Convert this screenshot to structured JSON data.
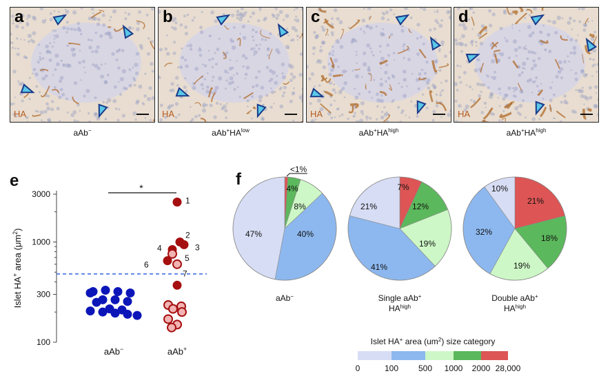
{
  "panels": [
    {
      "label": "a",
      "stain": "HA",
      "caption_main": "aAb",
      "caption_sup1": "−",
      "caption_mid": "",
      "caption_sup2": ""
    },
    {
      "label": "b",
      "stain": "HA",
      "caption_main": "aAb",
      "caption_sup1": "+",
      "caption_mid": "HA",
      "caption_sup2": "low"
    },
    {
      "label": "c",
      "stain": "HA",
      "caption_main": "aAb",
      "caption_sup1": "+",
      "caption_mid": "HA",
      "caption_sup2": "high"
    },
    {
      "label": "d",
      "stain": "HA",
      "caption_main": "aAb",
      "caption_sup1": "+",
      "caption_mid": "HA",
      "caption_sup2": "high"
    }
  ],
  "colors": {
    "stain_brown": "#b06a2a",
    "tissue_bg": "#e8ddd0",
    "arrow_fill": "#5ac8e8",
    "arrow_edge": "#1a3a8a",
    "dot_blue": "#0c16b8",
    "dot_dark_red": "#a50f0f",
    "dot_light_red": "#f2b3b3",
    "threshold_line": "#3366dd"
  },
  "chart_data": [
    {
      "panel_label": "e",
      "type": "scatter",
      "ylabel": "Islet HA+ area (μm2)",
      "ylabel_text": "Islet HA",
      "ylabel_sup": "+",
      "ylabel_text2": " area (μm",
      "ylabel_sup2": "2",
      "ylabel_text3": ")",
      "yscale": "log",
      "ylim": [
        100,
        3000
      ],
      "yticks": [
        100,
        300,
        1000,
        3000
      ],
      "ytick_labels": [
        "100",
        "300",
        "1000",
        "3000"
      ],
      "categories": [
        "aAb-",
        "aAb+"
      ],
      "xtick_main": [
        "aAb",
        "aAb"
      ],
      "xtick_sup": [
        "−",
        "+"
      ],
      "threshold": 480,
      "significance": "*",
      "series": [
        {
          "name": "aAb-",
          "category_index": 0,
          "color": "blue",
          "values": [
            320,
            330,
            320,
            310,
            310,
            265,
            265,
            255,
            250,
            215,
            210,
            205,
            200,
            195,
            190,
            185
          ]
        },
        {
          "name": "aAb+ HA high",
          "category_index": 1,
          "color": "dark-red",
          "points": [
            {
              "value": 2500,
              "label": "1"
            },
            {
              "value": 1000,
              "label": "2"
            },
            {
              "value": 940,
              "label": "3"
            },
            {
              "value": 840,
              "label": "4"
            },
            {
              "value": 650,
              "label": "6"
            },
            {
              "value": 370,
              "label": ""
            }
          ]
        },
        {
          "name": "aAb+ HA high (light)",
          "category_index": 1,
          "color": "light-red",
          "points": [
            {
              "value": 760,
              "label": "5"
            },
            {
              "value": 600,
              "label": "7"
            },
            {
              "value": 235,
              "label": ""
            },
            {
              "value": 228,
              "label": ""
            },
            {
              "value": 215,
              "label": ""
            },
            {
              "value": 200,
              "label": ""
            },
            {
              "value": 170,
              "label": ""
            },
            {
              "value": 150,
              "label": ""
            },
            {
              "value": 140,
              "label": ""
            }
          ]
        }
      ]
    },
    {
      "panel_label": "f",
      "type": "pie",
      "legend_title_main": "Islet HA",
      "legend_title_sup": "+",
      "legend_title_rest": " area (um",
      "legend_title_sup2": "2",
      "legend_title_end": ") size category",
      "categories": [
        "0-100",
        "100-500",
        "500-1000",
        "1000-2000",
        "2000-28,000"
      ],
      "category_colors": [
        "#d7ddf4",
        "#8db8ef",
        "#cdf7c6",
        "#5cb85c",
        "#dd5555"
      ],
      "legend_ticks": [
        "0",
        "100",
        "500",
        "1000",
        "2000",
        "28,000"
      ],
      "pies": [
        {
          "name": "aAb-",
          "caption_main": "aAb",
          "caption_sup": "−",
          "caption_line2": "",
          "caption_line2_sup": "",
          "values": [
            47,
            40,
            8,
            4,
            1
          ],
          "labels": [
            "47%",
            "40%",
            "8%",
            "4%",
            "<1%"
          ]
        },
        {
          "name": "Single aAb+ HA high",
          "caption_main": "Single aAb",
          "caption_sup": "+",
          "caption_line2": "HA",
          "caption_line2_sup": "high",
          "values": [
            21,
            41,
            19,
            12,
            7
          ],
          "labels": [
            "21%",
            "41%",
            "19%",
            "12%",
            "7%"
          ]
        },
        {
          "name": "Double aAb+ HA high",
          "caption_main": "Double aAb",
          "caption_sup": "+",
          "caption_line2": "HA",
          "caption_line2_sup": "high",
          "values": [
            10,
            32,
            19,
            18,
            21
          ],
          "labels": [
            "10%",
            "32%",
            "19%",
            "18%",
            "21%"
          ]
        }
      ]
    }
  ]
}
